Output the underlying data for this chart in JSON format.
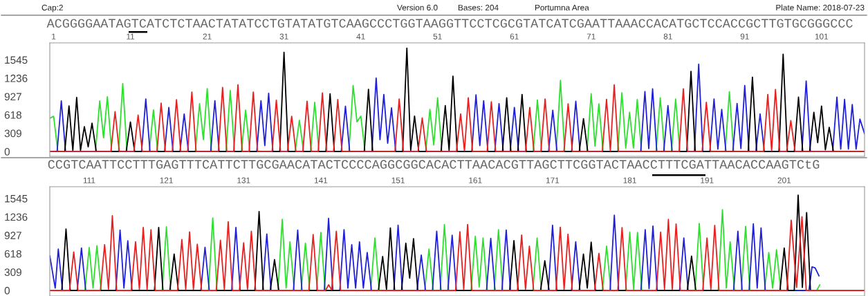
{
  "chart_data": [
    {
      "type": "line",
      "annotations": [
        "Cap:2",
        "Version 6.0",
        "Bases: 204",
        "Portumna Area",
        "Plate Name: 2018-07-23",
        "ACGGGGAATAGTCATCTCTAACTATATCCTGTATATGTCAAGCCCTGGTAAGGTTCCTCGCGTATCATCGAATTAAACCACATGCTCCACCGCTTGTGCGGGCCC"
      ],
      "xlim": [
        0.5,
        106.6
      ],
      "xticks": [
        1,
        11,
        21,
        31,
        41,
        51,
        61,
        71,
        81,
        91,
        101
      ],
      "ylim": [
        -80,
        1830
      ],
      "yticks": [
        0,
        309,
        618,
        927,
        1236,
        1545
      ],
      "series": [
        {
          "color": "#2ee02e",
          "x": [
            0.5,
            1,
            1.55,
            6.45,
            7,
            7.5,
            8,
            8.55,
            9.45,
            10,
            10.55,
            13.45,
            14,
            14.55,
            19.45,
            20,
            20.5,
            21,
            21.55,
            23.45,
            24,
            24.55,
            25.45,
            26,
            26.55,
            32.45,
            33,
            33.55,
            34.45,
            35,
            35.55,
            39.45,
            40,
            40.5,
            41,
            41.55,
            49.45,
            50,
            50.5,
            51,
            51.55,
            63.45,
            64,
            64.55,
            66.45,
            67,
            67.55,
            70.45,
            71,
            71.5,
            72,
            72.55,
            74.45,
            75,
            75.5,
            76,
            76.5,
            77,
            77.55,
            79.45,
            80,
            80.55,
            81.45,
            82,
            82.55,
            88.45,
            89,
            89.55,
            106.6
          ],
          "values": [
            560,
            594,
            0,
            0,
            854,
            230,
            923,
            0,
            0,
            1145,
            0,
            0,
            702,
            0,
            0,
            807,
            200,
            1059,
            0,
            0,
            1028,
            0,
            0,
            698,
            0,
            0,
            528,
            0,
            0,
            829,
            0,
            0,
            1112,
            500,
            596,
            0,
            0,
            709,
            110,
            905,
            0,
            0,
            867,
            0,
            0,
            1199,
            0,
            0,
            973,
            90,
            803,
            0,
            0,
            991,
            60,
            660,
            60,
            875,
            0,
            0,
            905,
            0,
            0,
            886,
            0,
            0,
            1007,
            0,
            0
          ]
        },
        {
          "color": "#2020d8",
          "x": [
            0.5,
            1.45,
            2,
            2.55,
            12.45,
            13,
            13.55,
            15.45,
            16,
            16.55,
            17.45,
            18,
            18.55,
            21.45,
            22,
            22.55,
            27.45,
            28,
            28.5,
            29,
            29.55,
            38.45,
            39,
            39.55,
            42.45,
            43,
            43.5,
            44,
            44.5,
            45,
            45.55,
            55.45,
            56,
            56.5,
            57,
            57.55,
            58.45,
            59,
            59.55,
            60.45,
            61,
            61.55,
            65.45,
            66,
            66.55,
            68.45,
            69,
            69.55,
            77.45,
            78,
            78.5,
            79,
            79.55,
            80.45,
            81,
            81.55,
            84.45,
            85,
            85.55,
            86.45,
            87,
            87.5,
            88,
            88.55,
            89.45,
            90,
            90.5,
            91,
            91.55,
            92.45,
            93,
            93.55,
            98.45,
            99,
            99.55,
            102.45,
            103,
            103.5,
            104,
            104.5,
            105,
            105.5,
            106,
            106.6
          ],
          "values": [
            0,
            0,
            854,
            0,
            0,
            885,
            0,
            0,
            741,
            0,
            0,
            632,
            0,
            0,
            857,
            0,
            0,
            857,
            100,
            982,
            0,
            0,
            762,
            0,
            0,
            1237,
            200,
            961,
            140,
            735,
            0,
            0,
            954,
            100,
            856,
            0,
            0,
            807,
            0,
            0,
            743,
            0,
            0,
            697,
            0,
            0,
            848,
            0,
            0,
            1010,
            50,
            1056,
            0,
            0,
            773,
            0,
            0,
            1470,
            0,
            0,
            886,
            40,
            709,
            0,
            0,
            810,
            50,
            1112,
            0,
            0,
            633,
            0,
            0,
            1188,
            0,
            0,
            916,
            40,
            878,
            40,
            792,
            40,
            547,
            300
          ]
        },
        {
          "color": "#000000",
          "x": [
            0.5,
            2.45,
            3,
            3.5,
            4,
            4.5,
            5,
            5.5,
            6,
            6.55,
            10.45,
            11,
            11.55,
            30.45,
            31,
            31.55,
            36.45,
            37,
            37.55,
            41.45,
            42,
            42.55,
            46.45,
            47,
            47.5,
            48,
            48.55,
            51.45,
            52,
            52.5,
            53,
            53.55,
            59.45,
            60,
            60.55,
            61.45,
            62,
            62.55,
            69.45,
            70,
            70.55,
            83.45,
            84,
            84.55,
            91.45,
            92,
            92.55,
            95.45,
            96,
            96.55,
            97.45,
            98,
            98.55,
            99.45,
            100,
            100.5,
            101,
            101.5,
            102,
            102.55,
            106.6
          ],
          "values": [
            0,
            0,
            768,
            20,
            912,
            20,
            419,
            80,
            477,
            0,
            0,
            497,
            0,
            0,
            1672,
            0,
            0,
            973,
            0,
            0,
            1048,
            0,
            0,
            1742,
            20,
            596,
            0,
            0,
            773,
            20,
            1270,
            0,
            0,
            905,
            0,
            0,
            961,
            0,
            0,
            554,
            0,
            0,
            1350,
            0,
            0,
            1252,
            0,
            0,
            1640,
            0,
            0,
            916,
            0,
            0,
            660,
            150,
            765,
            30,
            407,
            0,
            0
          ]
        },
        {
          "color": "#e82020",
          "x": [
            0.5,
            8.45,
            9,
            9.55,
            11.45,
            12,
            12.55,
            14.45,
            15,
            15.55,
            16.45,
            17,
            17.55,
            18.45,
            19,
            19.55,
            22.45,
            23,
            23.55,
            24.45,
            25,
            25.55,
            26.45,
            27,
            27.55,
            29.45,
            30,
            30.55,
            31.45,
            32,
            32.55,
            33.45,
            34,
            34.55,
            35.45,
            36,
            36.55,
            37.45,
            38,
            38.55,
            45.45,
            46,
            46.55,
            48.45,
            49,
            49.55,
            53.45,
            54,
            54.5,
            55,
            55.55,
            57.45,
            58,
            58.55,
            62.45,
            63,
            63.55,
            64.45,
            65,
            65.55,
            67.45,
            68,
            68.55,
            72.45,
            73,
            73.5,
            74,
            74.55,
            82.45,
            83,
            83.55,
            85.45,
            86,
            86.55,
            93.45,
            94,
            94.5,
            95,
            95.55,
            96.45,
            97,
            97.55,
            106.6
          ],
          "values": [
            0,
            0,
            671,
            0,
            0,
            613,
            0,
            0,
            815,
            0,
            0,
            873,
            0,
            0,
            1001,
            0,
            0,
            1079,
            0,
            0,
            1125,
            0,
            0,
            1001,
            0,
            0,
            865,
            0,
            0,
            594,
            0,
            0,
            848,
            0,
            0,
            988,
            0,
            0,
            875,
            0,
            0,
            886,
            0,
            0,
            566,
            0,
            0,
            633,
            10,
            905,
            0,
            0,
            837,
            0,
            0,
            743,
            0,
            0,
            886,
            0,
            0,
            803,
            0,
            0,
            878,
            10,
            1123,
            0,
            0,
            1056,
            0,
            0,
            829,
            0,
            0,
            961,
            10,
            1044,
            0,
            0,
            520,
            0,
            0
          ]
        }
      ]
    },
    {
      "type": "line",
      "annotations": [
        "CCGTCAATTCCTTTGAGTTTCATTCTTGCGAACATACTCCCCAGGCGGCACACTTAACACGTTAGCTTCGGTACTAACCTTTCGATTAACACCAAGTCtG"
      ],
      "xlim": [
        105.9,
        211.4
      ],
      "xticks": [
        111,
        121,
        131,
        141,
        151,
        161,
        171,
        181,
        191,
        201
      ],
      "ylim": [
        -93,
        1742
      ],
      "yticks": [
        0,
        309,
        618,
        927,
        1236,
        1545
      ],
      "series": [
        {
          "color": "#2ee02e",
          "x": [
            105.9,
            110.45,
            111,
            111.5,
            112,
            112.55,
            120.45,
            121,
            121.55,
            126.45,
            127,
            127.55,
            135.45,
            136,
            136.5,
            137,
            137.55,
            138.45,
            139,
            139.55,
            140.45,
            141,
            141.55,
            147.45,
            148,
            148.55,
            154.45,
            155,
            155.55,
            156.45,
            157,
            157.55,
            160.45,
            161,
            161.5,
            162,
            162.55,
            163.45,
            164,
            164.55,
            168.45,
            169,
            169.55,
            177.45,
            178,
            178.55,
            180.45,
            181,
            181.5,
            182,
            182.55,
            189.45,
            190,
            190.55,
            192.45,
            193,
            193.5,
            194,
            194.55,
            195.45,
            196,
            196.55,
            198.45,
            199,
            199.5,
            200,
            200.55,
            205.2,
            205.6
          ],
          "values": [
            0,
            0,
            720,
            40,
            750,
            0,
            0,
            1069,
            0,
            0,
            1219,
            0,
            0,
            1193,
            40,
            818,
            0,
            0,
            795,
            0,
            0,
            975,
            0,
            0,
            881,
            0,
            0,
            694,
            0,
            0,
            1106,
            0,
            0,
            911,
            60,
            881,
            0,
            0,
            1020,
            0,
            0,
            881,
            0,
            0,
            743,
            0,
            0,
            980,
            20,
            973,
            0,
            0,
            1125,
            0,
            0,
            1357,
            40,
            818,
            0,
            0,
            1076,
            0,
            0,
            638,
            40,
            683,
            0,
            0,
            94
          ]
        },
        {
          "color": "#2020d8",
          "x": [
            105.9,
            106.6,
            107,
            107.55,
            109.45,
            110,
            110.55,
            114.45,
            115,
            115.5,
            116,
            116.55,
            125.45,
            126,
            126.55,
            129.45,
            130,
            130.55,
            133.45,
            134,
            134.55,
            137.45,
            138,
            138.55,
            141.45,
            142,
            142.55,
            143.45,
            144,
            144.5,
            145,
            145.5,
            146,
            146.5,
            147,
            147.55,
            150.45,
            151,
            151.55,
            153.45,
            154,
            154.55,
            155.45,
            156,
            156.55,
            157.45,
            158,
            158.55,
            162.45,
            163,
            163.55,
            164.45,
            165,
            165.55,
            170.45,
            171,
            171.55,
            173.45,
            174,
            174.55,
            178.45,
            179,
            179.55,
            182.45,
            183,
            183.5,
            184,
            184.55,
            187.45,
            188,
            188.55,
            194.45,
            195,
            195.55,
            196.45,
            197,
            197.5,
            198,
            198.55,
            204.2,
            204.6,
            205.0,
            205.5
          ],
          "values": [
            581,
            40,
            694,
            0,
            0,
            713,
            0,
            0,
            1013,
            40,
            833,
            0,
            0,
            724,
            0,
            0,
            1058,
            0,
            0,
            949,
            0,
            0,
            1013,
            0,
            0,
            1211,
            0,
            0,
            1020,
            40,
            769,
            40,
            818,
            40,
            638,
            0,
            0,
            1095,
            0,
            0,
            593,
            0,
            0,
            994,
            0,
            0,
            926,
            0,
            0,
            874,
            0,
            0,
            1013,
            0,
            0,
            1095,
            0,
            0,
            818,
            0,
            0,
            1263,
            0,
            0,
            1020,
            30,
            1082,
            0,
            0,
            881,
            0,
            0,
            994,
            0,
            0,
            1118,
            40,
            1050,
            0,
            0,
            396,
            380,
            245
          ]
        },
        {
          "color": "#000000",
          "x": [
            105.9,
            107.45,
            108,
            108.55,
            119.45,
            120,
            120.55,
            121.45,
            122,
            122.55,
            132.45,
            133,
            133.55,
            134.45,
            135,
            135.55,
            148.45,
            149,
            149.5,
            150,
            150.55,
            151.45,
            152,
            152.5,
            153,
            153.55,
            165.45,
            166,
            166.55,
            169.45,
            170,
            170.55,
            174.45,
            175,
            175.5,
            176,
            176.55,
            188.45,
            189,
            189.55,
            200.45,
            201,
            201.5,
            202.3,
            202.8,
            203.35,
            203.9,
            204.4,
            211.4
          ],
          "values": [
            0,
            0,
            1031,
            0,
            0,
            1058,
            0,
            0,
            611,
            0,
            0,
            1324,
            0,
            0,
            518,
            0,
            0,
            570,
            20,
            1050,
            0,
            0,
            795,
            207,
            870,
            0,
            0,
            836,
            0,
            0,
            499,
            0,
            0,
            611,
            40,
            811,
            0,
            0,
            577,
            0,
            0,
            713,
            0,
            0,
            1601,
            50,
            1308,
            0,
            0
          ]
        },
        {
          "color": "#e82020",
          "x": [
            105.9,
            108.45,
            109,
            109.55,
            112.45,
            113,
            113.5,
            114,
            114.55,
            116.45,
            117,
            117.5,
            118,
            118.5,
            119,
            119.55,
            122.45,
            123,
            123.5,
            124,
            124.5,
            125,
            125.55,
            127.45,
            128,
            128.5,
            129,
            129.55,
            130.45,
            131,
            131.5,
            132,
            132.55,
            139.45,
            140,
            140.55,
            141.6,
            142,
            142.4,
            143,
            143.55,
            158.45,
            159,
            159.5,
            160,
            160.55,
            166.45,
            167,
            167.5,
            168,
            168.55,
            171.45,
            172,
            172.5,
            173,
            173.55,
            176.45,
            177,
            177.55,
            179.45,
            180,
            180.55,
            184.45,
            185,
            185.5,
            186,
            186.5,
            187,
            187.55,
            190.45,
            191,
            191.5,
            192,
            192.55,
            201.35,
            201.9,
            202.6,
            203.3,
            203.85,
            211.4
          ],
          "values": [
            0,
            0,
            645,
            0,
            0,
            769,
            20,
            1256,
            0,
            0,
            818,
            20,
            1058,
            20,
            1020,
            0,
            0,
            855,
            20,
            983,
            20,
            776,
            0,
            0,
            844,
            20,
            1155,
            0,
            0,
            799,
            20,
            994,
            0,
            0,
            938,
            0,
            0,
            95,
            10,
            994,
            0,
            0,
            986,
            20,
            1106,
            0,
            0,
            930,
            20,
            743,
            0,
            0,
            1061,
            20,
            945,
            0,
            0,
            622,
            0,
            0,
            1056,
            0,
            0,
            980,
            20,
            1193,
            20,
            1117,
            0,
            0,
            881,
            20,
            1093,
            0,
            0,
            1181,
            50,
            1237,
            0,
            0
          ]
        }
      ]
    }
  ]
}
